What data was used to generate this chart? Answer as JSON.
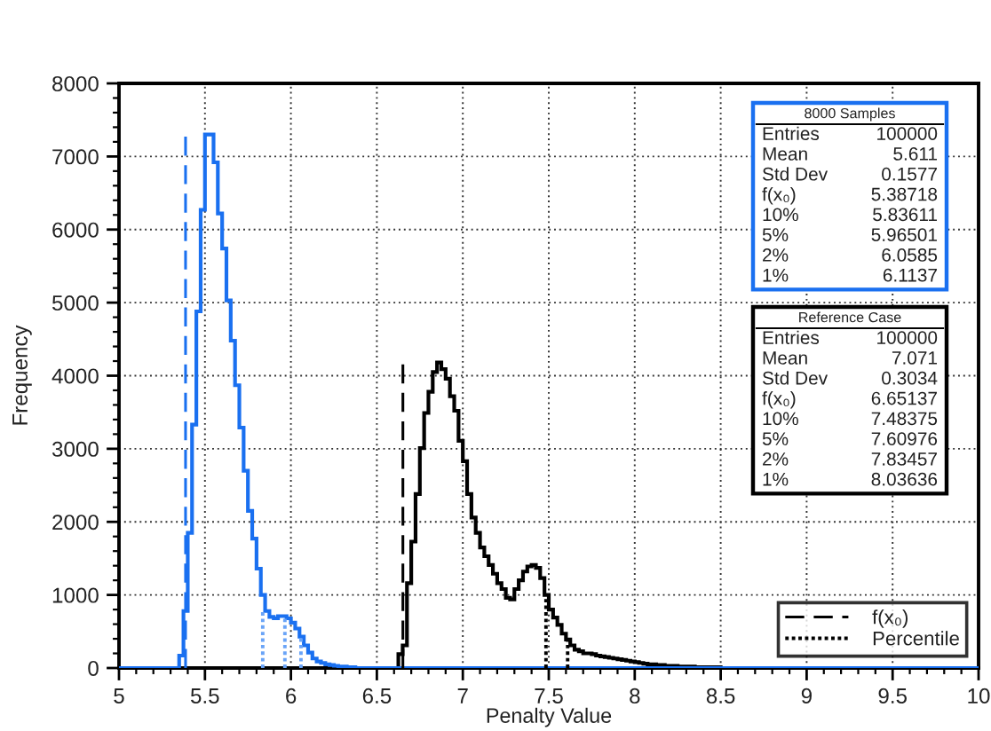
{
  "chart_data": {
    "type": "histogram",
    "xlabel": "Penalty Value",
    "ylabel": "Frequency",
    "bins": [
      5,
      5.025,
      5.05,
      5.075,
      5.1,
      5.125,
      5.15,
      5.175,
      5.2,
      5.225,
      5.25,
      5.275,
      5.3,
      5.325,
      5.35,
      5.375,
      5.4,
      5.425,
      5.45,
      5.475,
      5.5,
      5.525,
      5.55,
      5.575,
      5.6,
      5.625,
      5.65,
      5.675,
      5.7,
      5.725,
      5.75,
      5.775,
      5.8,
      5.825,
      5.85,
      5.875,
      5.9,
      5.925,
      5.95,
      5.975,
      6,
      6.025,
      6.05,
      6.075,
      6.1,
      6.125,
      6.15,
      6.175,
      6.2,
      6.225,
      6.25,
      6.275,
      6.3,
      6.325,
      6.35,
      6.375,
      6.4,
      6.425,
      6.45,
      6.475,
      6.5,
      6.525,
      6.55,
      6.575,
      6.6,
      6.625,
      6.65,
      6.675,
      6.7,
      6.725,
      6.75,
      6.775,
      6.8,
      6.825,
      6.85,
      6.875,
      6.9,
      6.925,
      6.95,
      6.975,
      7,
      7.025,
      7.05,
      7.075,
      7.1,
      7.125,
      7.15,
      7.175,
      7.2,
      7.225,
      7.25,
      7.275,
      7.3,
      7.325,
      7.35,
      7.375,
      7.4,
      7.425,
      7.45,
      7.475,
      7.5,
      7.525,
      7.55,
      7.575,
      7.6,
      7.625,
      7.65,
      7.675,
      7.7,
      7.725,
      7.75,
      7.775,
      7.8,
      7.825,
      7.85,
      7.875,
      7.9,
      7.925,
      7.95,
      7.975,
      8,
      8.025,
      8.05,
      8.075,
      8.1,
      8.125,
      8.15,
      8.175,
      8.2,
      8.225,
      8.25,
      8.275,
      8.3,
      8.325,
      8.35,
      8.375,
      8.4,
      8.425,
      8.45,
      8.475,
      8.5,
      8.525,
      8.55,
      8.575,
      8.6,
      8.625,
      8.65,
      8.675,
      8.7,
      8.725,
      8.75,
      8.775,
      8.8,
      8.825,
      8.85,
      8.875,
      8.9,
      8.925,
      8.95,
      8.975,
      9,
      9.025,
      9.05,
      9.075,
      9.1,
      9.125,
      9.15,
      9.175,
      9.2,
      9.225,
      9.25,
      9.275,
      9.3,
      9.325,
      9.35,
      9.375,
      9.4,
      9.425,
      9.45,
      9.475,
      9.5,
      9.525,
      9.55,
      9.575,
      9.6,
      9.625,
      9.65,
      9.675,
      9.7,
      9.725,
      9.75,
      9.775,
      9.8,
      9.825,
      9.85,
      9.875,
      9.9,
      9.925,
      9.95,
      9.975,
      10
    ],
    "series": [
      {
        "color": "#1a70f0",
        "values": [
          0,
          0,
          0,
          0,
          0,
          0,
          0,
          0,
          0,
          0,
          0,
          0,
          0,
          0,
          170,
          780,
          1850,
          3330,
          4880,
          6270,
          7300,
          7300,
          6920,
          6220,
          5740,
          5030,
          4480,
          3870,
          3290,
          2700,
          2150,
          1770,
          1360,
          1000,
          780,
          700,
          680,
          710,
          710,
          680,
          620,
          540,
          430,
          310,
          210,
          130,
          90,
          70,
          50,
          40,
          30,
          20,
          20,
          10,
          10,
          0,
          0,
          0,
          0,
          0,
          0,
          0,
          0,
          0,
          0,
          0,
          0,
          0,
          0,
          0,
          0,
          0,
          0,
          0,
          0,
          0,
          0,
          0,
          0,
          0,
          0,
          0,
          0,
          0,
          0,
          0,
          0,
          0,
          0,
          0,
          0,
          0,
          0,
          0,
          0,
          0,
          0,
          0,
          0,
          0,
          0,
          0,
          0,
          0,
          0,
          0,
          0,
          0,
          0,
          0,
          0,
          0,
          0,
          0,
          0,
          0,
          0,
          0,
          0,
          0,
          0,
          0,
          0,
          0,
          0,
          0,
          0,
          0,
          0,
          0,
          0,
          0,
          0,
          0,
          0,
          0,
          0,
          0,
          0,
          0,
          0,
          0,
          0,
          0,
          0,
          0,
          0,
          0,
          0,
          0,
          0,
          0,
          0,
          0,
          0,
          0,
          0,
          0,
          0,
          0,
          0,
          0,
          0,
          0,
          0,
          0,
          0,
          0,
          0,
          0,
          0,
          0,
          0,
          0,
          0,
          0,
          0,
          0,
          0,
          0,
          0,
          0,
          0,
          0,
          0,
          0,
          0,
          0,
          0,
          0,
          0,
          0,
          0,
          0,
          0,
          0,
          0,
          0,
          0,
          0
        ]
      },
      {
        "color": "#000000",
        "values": [
          0,
          0,
          0,
          0,
          0,
          0,
          0,
          0,
          0,
          0,
          0,
          0,
          0,
          0,
          0,
          0,
          0,
          0,
          0,
          0,
          0,
          0,
          0,
          0,
          0,
          0,
          0,
          0,
          0,
          0,
          0,
          0,
          0,
          0,
          0,
          0,
          0,
          0,
          0,
          0,
          0,
          0,
          0,
          0,
          0,
          0,
          0,
          0,
          0,
          0,
          0,
          0,
          0,
          0,
          0,
          0,
          0,
          0,
          0,
          0,
          0,
          0,
          0,
          0,
          0,
          190,
          310,
          1160,
          1730,
          2380,
          3010,
          3490,
          3780,
          4050,
          4180,
          4090,
          3960,
          3720,
          3520,
          3110,
          2830,
          2380,
          2060,
          1850,
          1650,
          1530,
          1410,
          1290,
          1160,
          1080,
          960,
          940,
          1080,
          1200,
          1320,
          1390,
          1410,
          1370,
          1230,
          1000,
          800,
          690,
          590,
          470,
          390,
          310,
          250,
          230,
          200,
          200,
          190,
          170,
          160,
          150,
          140,
          130,
          120,
          110,
          100,
          90,
          80,
          70,
          60,
          50,
          50,
          40,
          40,
          30,
          30,
          30,
          20,
          20,
          20,
          20,
          10,
          10,
          10,
          10,
          10,
          10,
          0,
          0,
          0,
          0,
          0,
          0,
          0,
          0,
          0,
          0,
          0,
          0,
          0,
          0,
          0,
          0,
          0,
          0,
          0,
          0,
          0,
          0,
          0,
          0,
          0,
          0,
          0,
          0,
          0,
          0,
          0,
          0,
          0,
          0,
          0,
          0,
          0,
          0,
          0,
          0,
          0,
          0,
          0,
          0,
          0,
          0,
          0,
          0,
          0,
          0,
          0,
          0,
          0,
          0,
          0,
          0,
          0,
          0,
          0,
          0
        ]
      },
      {
        "type": "line",
        "color": "#1a70f0",
        "line_style": "dashed",
        "x": [
          5.38718,
          5.38718
        ],
        "values": [
          0,
          7300
        ]
      },
      {
        "type": "line",
        "name": "f(x₀)",
        "color": "#000000",
        "line_style": "dashed",
        "x": [
          6.65137,
          6.65137
        ],
        "values": [
          0,
          4200
        ]
      },
      {
        "type": "line",
        "color": "#6aa4f7",
        "line_style": "dotted",
        "x": [
          5.83611,
          5.83611,
          null,
          5.96501,
          5.96501,
          null,
          6.0585,
          6.0585
        ],
        "values": [
          0,
          780,
          null,
          0,
          700,
          null,
          0,
          410
        ]
      },
      {
        "type": "line",
        "name": "Percentile",
        "color": "#000000",
        "line_style": "dotted",
        "x": [
          7.48375,
          7.48375,
          null,
          7.60976,
          7.60976
        ],
        "values": [
          0,
          1000,
          null,
          0,
          390
        ]
      }
    ],
    "annotations": [
      "8000 Samples\nEntries 100000\nMean 5.611\nStd Dev 0.1577\nf(x₀) 5.38718\n10% 5.83611\n5% 5.96501\n2% 6.0585\n1% 6.1137",
      "Reference Case\nEntries 100000\nMean 7.071\nStd Dev 0.3034\nf(x₀) 6.65137\n10% 7.48375\n5% 7.60976\n2% 7.83457\n1% 8.03636"
    ],
    "xlim": [
      5,
      10
    ],
    "xticks": [
      5,
      5.5,
      6,
      6.5,
      7,
      7.5,
      8,
      8.5,
      9,
      9.5,
      10
    ],
    "ylim": [
      0,
      8000
    ],
    "yticks": [
      0,
      1000,
      2000,
      3000,
      4000,
      5000,
      6000,
      7000,
      8000
    ],
    "grid": true,
    "legend": "bottom right"
  }
}
